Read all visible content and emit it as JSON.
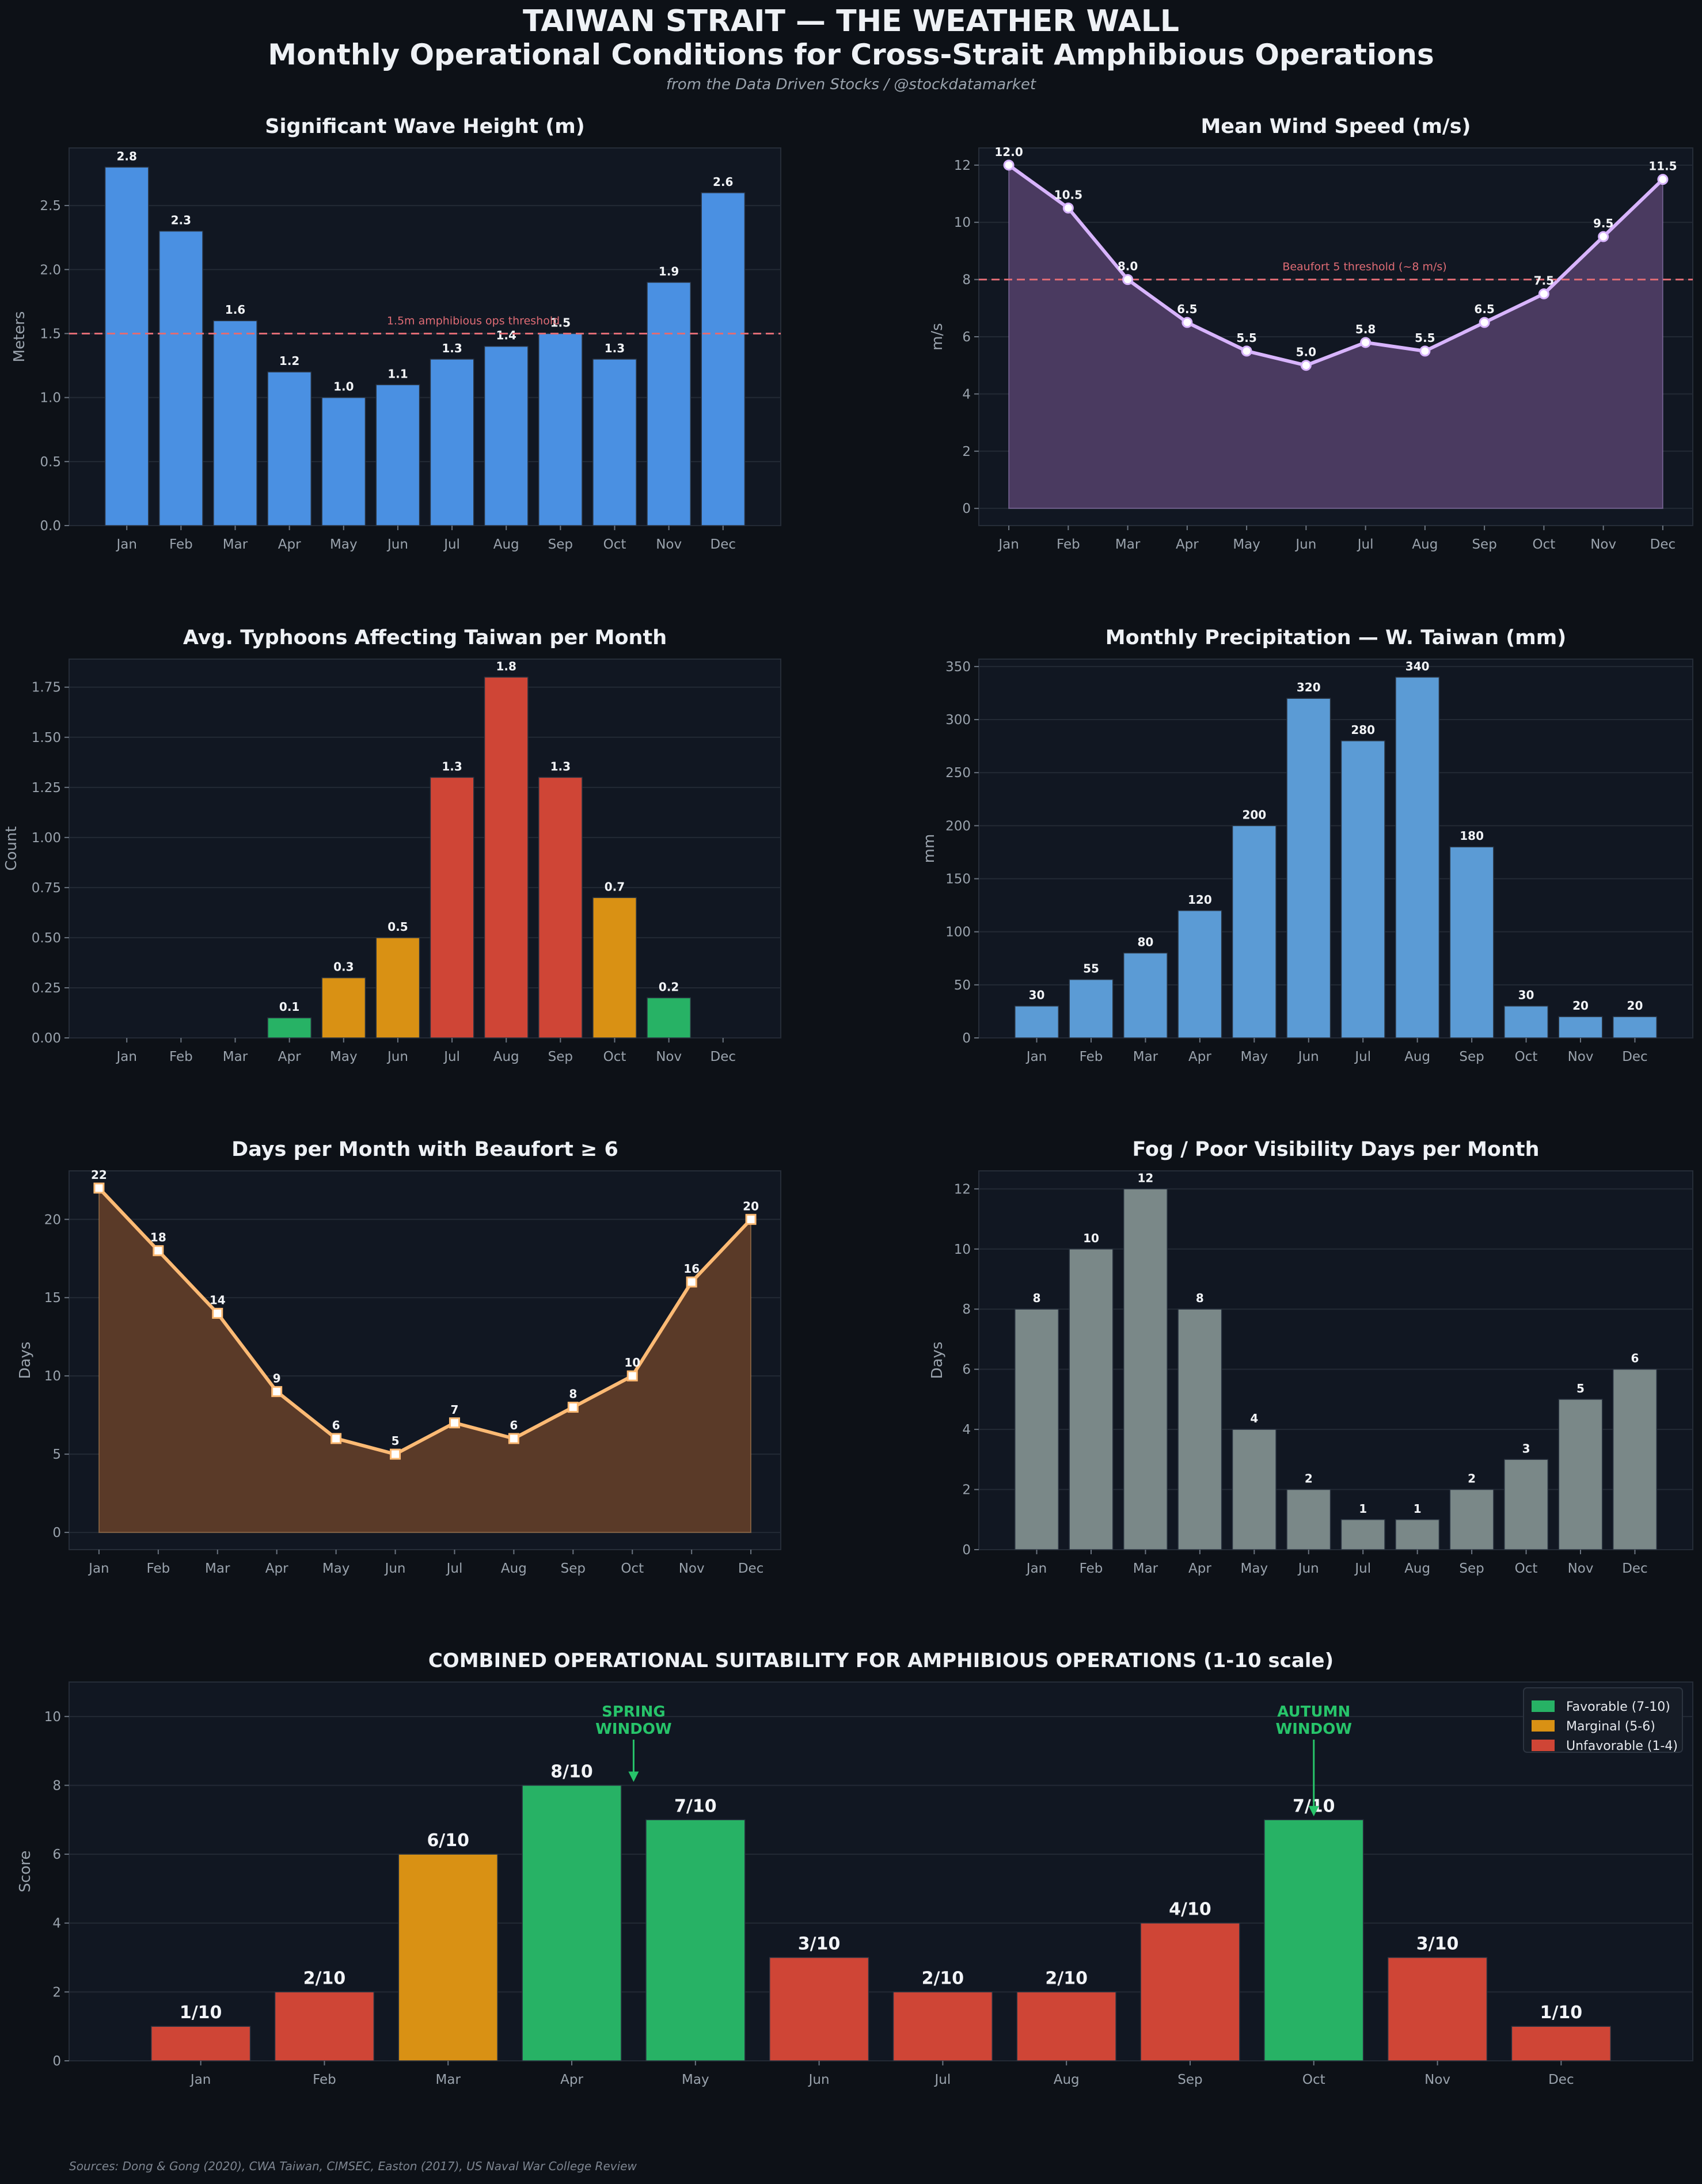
{
  "title": "TAIWAN STRAIT — THE WEATHER WALL",
  "subtitle": "Monthly Operational Conditions for Cross-Strait Amphibious Operations",
  "credit": "from the Data Driven Stocks / @stockdatamarket",
  "sources": "Sources: Dong & Gong (2020), CWA Taiwan, CIMSEC, Easton (2017), US Naval War College Review",
  "colors": {
    "background": "#0d1117",
    "panel": "#111722",
    "blue": "#4a90e2",
    "steel_blue": "#5b9bd5",
    "purple": "#d8b4fe",
    "purple_fill": "#4a3a60",
    "orange_line": "#fdba74",
    "brown_fill": "#5a3a28",
    "gray_bar": "#7a8888",
    "green": "#27b265",
    "amber": "#d99114",
    "red": "#cf4536",
    "threshold": "#e06c75",
    "window_text": "#27c46a"
  },
  "chart_data": [
    {
      "id": "wave",
      "type": "bar",
      "title": "Significant Wave Height (m)",
      "ylabel": "Meters",
      "categories": [
        "Jan",
        "Feb",
        "Mar",
        "Apr",
        "May",
        "Jun",
        "Jul",
        "Aug",
        "Sep",
        "Oct",
        "Nov",
        "Dec"
      ],
      "values": [
        2.8,
        2.3,
        1.6,
        1.2,
        1.0,
        1.1,
        1.3,
        1.4,
        1.5,
        1.3,
        1.9,
        2.6
      ],
      "labels": [
        "2.8",
        "2.3",
        "1.6",
        "1.2",
        "1.0",
        "1.1",
        "1.3",
        "1.4",
        "1.5",
        "1.3",
        "1.9",
        "2.6"
      ],
      "ylim": [
        0,
        2.95
      ],
      "yticks": [
        0,
        0.5,
        1.0,
        1.5,
        2.0,
        2.5
      ],
      "ytick_labels": [
        "0.0",
        "0.5",
        "1.0",
        "1.5",
        "2.0",
        "2.5"
      ],
      "threshold": {
        "value": 1.5,
        "label": "1.5m amphibious ops threshold"
      }
    },
    {
      "id": "wind",
      "type": "line",
      "title": "Mean Wind Speed (m/s)",
      "ylabel": "m/s",
      "categories": [
        "Jan",
        "Feb",
        "Mar",
        "Apr",
        "May",
        "Jun",
        "Jul",
        "Aug",
        "Sep",
        "Oct",
        "Nov",
        "Dec"
      ],
      "values": [
        12.0,
        10.5,
        8.0,
        6.5,
        5.5,
        5.0,
        5.8,
        5.5,
        6.5,
        7.5,
        9.5,
        11.5
      ],
      "labels": [
        "12.0",
        "10.5",
        "8.0",
        "6.5",
        "5.5",
        "5.0",
        "5.8",
        "5.5",
        "6.5",
        "7.5",
        "9.5",
        "11.5"
      ],
      "ylim": [
        -0.6,
        12.6
      ],
      "yticks": [
        0,
        2,
        4,
        6,
        8,
        10,
        12
      ],
      "ytick_labels": [
        "0",
        "2",
        "4",
        "6",
        "8",
        "10",
        "12"
      ],
      "threshold": {
        "value": 8,
        "label": "Beaufort 5 threshold (~8 m/s)"
      }
    },
    {
      "id": "typhoon",
      "type": "bar",
      "title": "Avg. Typhoons Affecting Taiwan per Month",
      "ylabel": "Count",
      "categories": [
        "Jan",
        "Feb",
        "Mar",
        "Apr",
        "May",
        "Jun",
        "Jul",
        "Aug",
        "Sep",
        "Oct",
        "Nov",
        "Dec"
      ],
      "values": [
        0,
        0,
        0,
        0.1,
        0.3,
        0.5,
        1.3,
        1.8,
        1.3,
        0.7,
        0.2,
        0
      ],
      "labels": [
        "",
        "",
        "",
        "0.1",
        "0.3",
        "0.5",
        "1.3",
        "1.8",
        "1.3",
        "0.7",
        "0.2",
        ""
      ],
      "colors": [
        "#27b265",
        "#27b265",
        "#27b265",
        "#27b265",
        "#d99114",
        "#d99114",
        "#cf4536",
        "#cf4536",
        "#cf4536",
        "#d99114",
        "#27b265",
        "#27b265"
      ],
      "ylim": [
        0,
        1.89
      ],
      "yticks": [
        0,
        0.25,
        0.5,
        0.75,
        1.0,
        1.25,
        1.5,
        1.75
      ],
      "ytick_labels": [
        "0.00",
        "0.25",
        "0.50",
        "0.75",
        "1.00",
        "1.25",
        "1.50",
        "1.75"
      ]
    },
    {
      "id": "precip",
      "type": "bar",
      "title": "Monthly Precipitation — W. Taiwan (mm)",
      "ylabel": "mm",
      "categories": [
        "Jan",
        "Feb",
        "Mar",
        "Apr",
        "May",
        "Jun",
        "Jul",
        "Aug",
        "Sep",
        "Oct",
        "Nov",
        "Dec"
      ],
      "values": [
        30,
        55,
        80,
        120,
        200,
        320,
        280,
        340,
        180,
        30,
        20,
        20
      ],
      "labels": [
        "30",
        "55",
        "80",
        "120",
        "200",
        "320",
        "280",
        "340",
        "180",
        "30",
        "20",
        "20"
      ],
      "ylim": [
        0,
        357
      ],
      "yticks": [
        0,
        50,
        100,
        150,
        200,
        250,
        300,
        350
      ],
      "ytick_labels": [
        "0",
        "50",
        "100",
        "150",
        "200",
        "250",
        "300",
        "350"
      ]
    },
    {
      "id": "beaufort",
      "type": "line",
      "title": "Days per Month with Beaufort ≥ 6",
      "ylabel": "Days",
      "categories": [
        "Jan",
        "Feb",
        "Mar",
        "Apr",
        "May",
        "Jun",
        "Jul",
        "Aug",
        "Sep",
        "Oct",
        "Nov",
        "Dec"
      ],
      "values": [
        22,
        18,
        14,
        9,
        6,
        5,
        7,
        6,
        8,
        10,
        16,
        20
      ],
      "labels": [
        "22",
        "18",
        "14",
        "9",
        "6",
        "5",
        "7",
        "6",
        "8",
        "10",
        "16",
        "20"
      ],
      "ylim": [
        -1.1,
        23.1
      ],
      "yticks": [
        0,
        5,
        10,
        15,
        20
      ],
      "ytick_labels": [
        "0",
        "5",
        "10",
        "15",
        "20"
      ]
    },
    {
      "id": "fog",
      "type": "bar",
      "title": "Fog / Poor Visibility Days per Month",
      "ylabel": "Days",
      "categories": [
        "Jan",
        "Feb",
        "Mar",
        "Apr",
        "May",
        "Jun",
        "Jul",
        "Aug",
        "Sep",
        "Oct",
        "Nov",
        "Dec"
      ],
      "values": [
        8,
        10,
        12,
        8,
        4,
        2,
        1,
        1,
        2,
        3,
        5,
        6
      ],
      "labels": [
        "8",
        "10",
        "12",
        "8",
        "4",
        "2",
        "1",
        "1",
        "2",
        "3",
        "5",
        "6"
      ],
      "ylim": [
        0,
        12.6
      ],
      "yticks": [
        0,
        2,
        4,
        6,
        8,
        10,
        12
      ],
      "ytick_labels": [
        "0",
        "2",
        "4",
        "6",
        "8",
        "10",
        "12"
      ]
    },
    {
      "id": "combined",
      "type": "bar",
      "title": "COMBINED OPERATIONAL SUITABILITY FOR AMPHIBIOUS OPERATIONS (1-10 scale)",
      "ylabel": "Score",
      "categories": [
        "Jan",
        "Feb",
        "Mar",
        "Apr",
        "May",
        "Jun",
        "Jul",
        "Aug",
        "Sep",
        "Oct",
        "Nov",
        "Dec"
      ],
      "values": [
        1,
        2,
        6,
        8,
        7,
        3,
        2,
        2,
        4,
        7,
        3,
        1
      ],
      "labels": [
        "1/10",
        "2/10",
        "6/10",
        "8/10",
        "7/10",
        "3/10",
        "2/10",
        "2/10",
        "4/10",
        "7/10",
        "3/10",
        "1/10"
      ],
      "colors": [
        "#cf4536",
        "#cf4536",
        "#d99114",
        "#27b265",
        "#27b265",
        "#cf4536",
        "#cf4536",
        "#cf4536",
        "#cf4536",
        "#27b265",
        "#cf4536",
        "#cf4536"
      ],
      "ylim": [
        0,
        11
      ],
      "yticks": [
        0,
        2,
        4,
        6,
        8,
        10
      ],
      "ytick_labels": [
        "0",
        "2",
        "4",
        "6",
        "8",
        "10"
      ],
      "legend": {
        "position": "top-right",
        "entries": [
          {
            "label": "Favorable (7-10)",
            "color": "#27b265"
          },
          {
            "label": "Marginal (5-6)",
            "color": "#d99114"
          },
          {
            "label": "Unfavorable (1-4)",
            "color": "#cf4536"
          }
        ]
      },
      "annotations": [
        {
          "text_line1": "SPRING",
          "text_line2": "WINDOW",
          "x": 4.5,
          "arrow_to_y": 8.0
        },
        {
          "text_line1": "AUTUMN",
          "text_line2": "WINDOW",
          "x": 10,
          "arrow_to_y": 7.0
        }
      ]
    }
  ]
}
